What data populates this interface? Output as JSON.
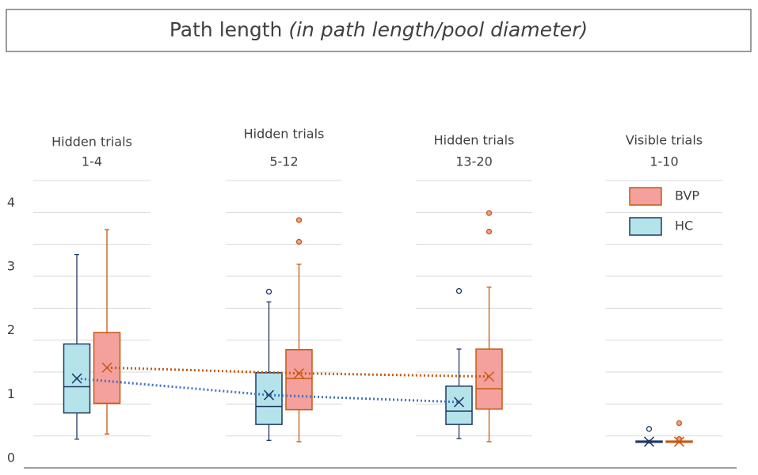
{
  "chart_data": {
    "type": "box",
    "title": "Path length",
    "subtitle": "(in path length/pool diameter)",
    "ylim": [
      0,
      4.5
    ],
    "yticks": [
      0,
      1,
      2,
      3,
      4
    ],
    "ygrid": [
      0.5,
      1,
      1.5,
      2,
      2.5,
      3,
      3.5,
      4,
      4.5
    ],
    "categories": [
      [
        "Hidden trials",
        "1-4"
      ],
      [
        "Hidden trials",
        "5-12"
      ],
      [
        "Hidden trials",
        "13-20"
      ],
      [
        "Visible trials",
        "1-10"
      ]
    ],
    "trend": [
      true,
      true,
      true,
      false
    ],
    "legend": "top-right",
    "series": [
      {
        "name": "HC",
        "color": "#1f3864",
        "fill": "#b4e4ea",
        "trend_color": "#4472c4",
        "boxes": [
          {
            "min": 0.45,
            "q1": 0.86,
            "median": 1.27,
            "q3": 1.94,
            "max": 3.34,
            "mean": 1.4,
            "outliers": []
          },
          {
            "min": 0.43,
            "q1": 0.68,
            "median": 0.96,
            "q3": 1.49,
            "max": 2.6,
            "mean": 1.14,
            "outliers": [
              2.76
            ]
          },
          {
            "min": 0.46,
            "q1": 0.68,
            "median": 0.89,
            "q3": 1.28,
            "max": 1.86,
            "mean": 1.03,
            "outliers": [
              2.77
            ]
          },
          {
            "min": 0.39,
            "q1": 0.4,
            "median": 0.41,
            "q3": 0.42,
            "max": 0.43,
            "mean": 0.41,
            "outliers": [
              0.61
            ]
          }
        ]
      },
      {
        "name": "BVP",
        "color": "#c55a11",
        "fill": "#f4a09c",
        "trend_color": "#c55a11",
        "boxes": [
          {
            "min": 0.53,
            "q1": 1.01,
            "median": 1.01,
            "q3": 2.12,
            "max": 3.73,
            "mean": 1.57,
            "outliers": []
          },
          {
            "min": 0.41,
            "q1": 0.91,
            "median": 1.4,
            "q3": 1.85,
            "max": 3.19,
            "mean": 1.48,
            "outliers": [
              3.88,
              3.54
            ]
          },
          {
            "min": 0.41,
            "q1": 0.92,
            "median": 1.24,
            "q3": 1.86,
            "max": 2.83,
            "mean": 1.43,
            "outliers": [
              3.99,
              3.7
            ]
          },
          {
            "min": 0.39,
            "q1": 0.4,
            "median": 0.41,
            "q3": 0.42,
            "max": 0.43,
            "mean": 0.41,
            "outliers": [
              0.7,
              0.45
            ]
          }
        ]
      }
    ]
  }
}
